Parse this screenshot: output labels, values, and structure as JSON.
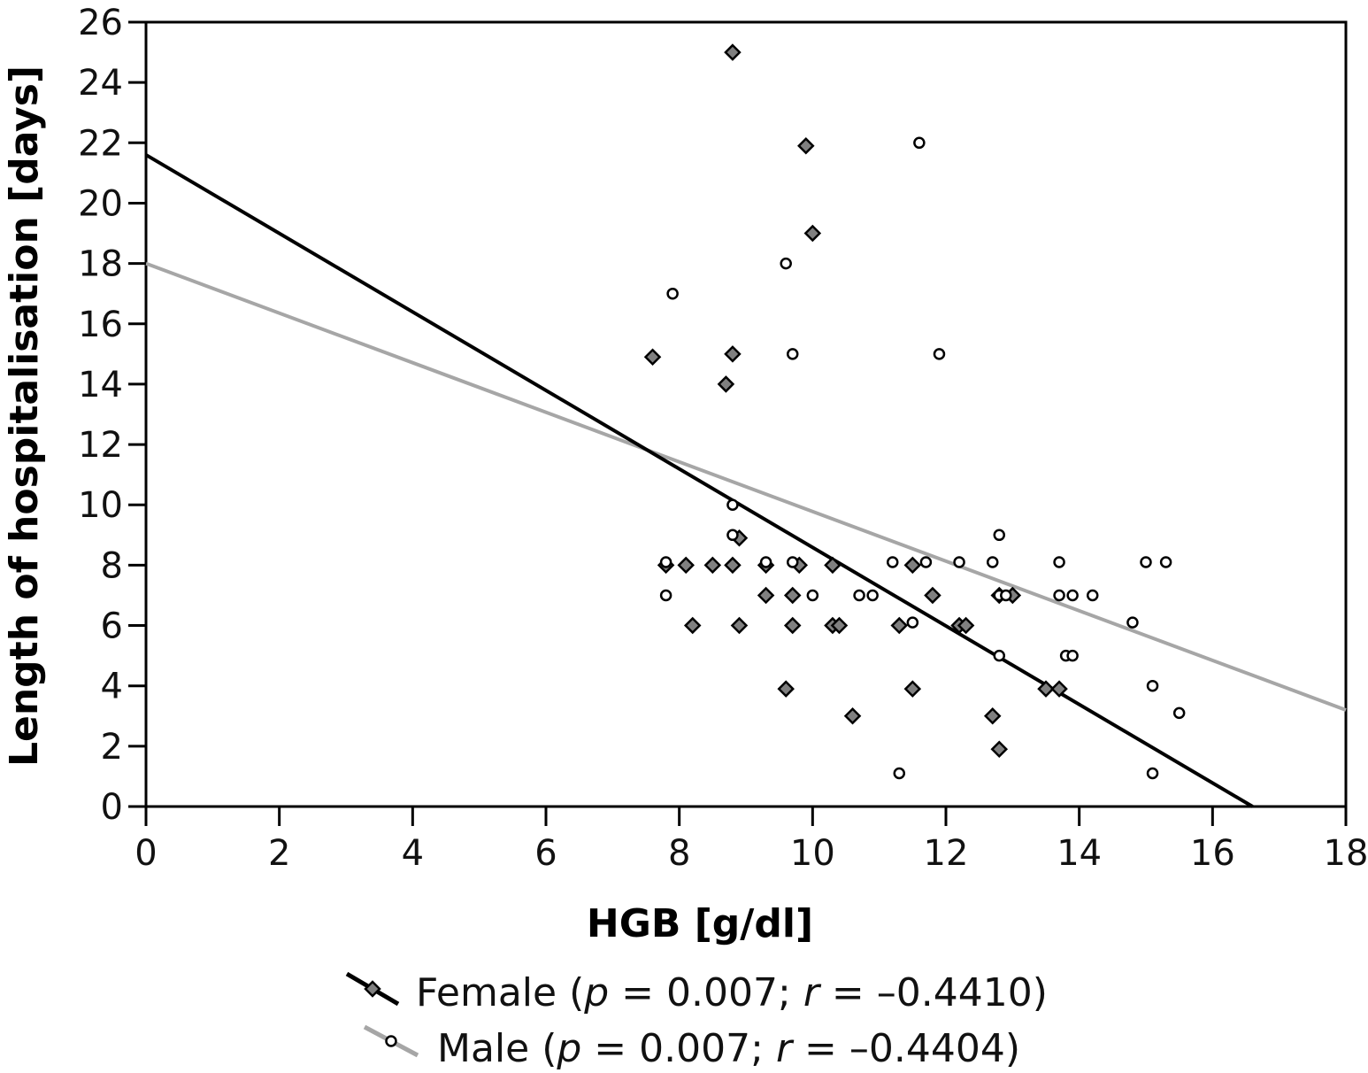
{
  "chart_data": {
    "type": "scatter",
    "xlabel": "HGB [g/dl]",
    "ylabel": "Length of hospitalisation [days]",
    "xlim": [
      0,
      18
    ],
    "ylim": [
      0,
      26
    ],
    "x_ticks": [
      0,
      2,
      4,
      6,
      8,
      10,
      12,
      14,
      16,
      18
    ],
    "y_ticks": [
      0,
      2,
      4,
      6,
      8,
      10,
      12,
      14,
      16,
      18,
      20,
      22,
      24,
      26
    ],
    "x_tick_labels": [
      "0",
      "2",
      "4",
      "6",
      "8",
      "10",
      "12",
      "14",
      "16",
      "18"
    ],
    "y_tick_labels": [
      "0",
      "2",
      "4",
      "6",
      "8",
      "10",
      "12",
      "14",
      "16",
      "18",
      "20",
      "22",
      "24",
      "26"
    ],
    "grid": false,
    "legend_position": "bottom-center",
    "series": [
      {
        "name": "Female",
        "marker": "diamond",
        "marker_color": "#808080",
        "line_color": "#000000",
        "legend_label": {
          "prefix": "Female (",
          "p_symbol": "p",
          "p_text": " = 0.007; ",
          "r_symbol": "r",
          "r_text": " = –0.4410)"
        },
        "trend_line": {
          "x": [
            0,
            16.6
          ],
          "y": [
            21.6,
            0
          ]
        },
        "points": [
          [
            8.8,
            25
          ],
          [
            9.9,
            21.9
          ],
          [
            10.0,
            19
          ],
          [
            7.6,
            14.9
          ],
          [
            8.8,
            15
          ],
          [
            8.7,
            14
          ],
          [
            8.9,
            8.9
          ],
          [
            7.8,
            8
          ],
          [
            8.1,
            8
          ],
          [
            8.5,
            8
          ],
          [
            8.8,
            8
          ],
          [
            9.3,
            8
          ],
          [
            9.8,
            8
          ],
          [
            10.3,
            8
          ],
          [
            11.5,
            8
          ],
          [
            9.3,
            7
          ],
          [
            9.7,
            7
          ],
          [
            11.8,
            7
          ],
          [
            12.8,
            7
          ],
          [
            13.0,
            7
          ],
          [
            8.2,
            6
          ],
          [
            8.9,
            6
          ],
          [
            9.7,
            6
          ],
          [
            10.3,
            6
          ],
          [
            10.4,
            6
          ],
          [
            11.3,
            6
          ],
          [
            12.2,
            6
          ],
          [
            12.3,
            6
          ],
          [
            9.6,
            3.9
          ],
          [
            11.5,
            3.9
          ],
          [
            13.5,
            3.9
          ],
          [
            13.7,
            3.9
          ],
          [
            10.6,
            3
          ],
          [
            12.7,
            3
          ],
          [
            12.8,
            1.9
          ]
        ]
      },
      {
        "name": "Male",
        "marker": "circle",
        "marker_color": "#ffffff",
        "line_color": "#a6a6a6",
        "legend_label": {
          "prefix": "Male (",
          "p_symbol": "p",
          "p_text": " = 0.007; ",
          "r_symbol": "r",
          "r_text": " = –0.4404)"
        },
        "trend_line": {
          "x": [
            0,
            18
          ],
          "y": [
            18,
            3.2
          ]
        },
        "points": [
          [
            11.6,
            22
          ],
          [
            9.6,
            18
          ],
          [
            7.9,
            17
          ],
          [
            9.7,
            15
          ],
          [
            11.9,
            15
          ],
          [
            8.8,
            10
          ],
          [
            8.8,
            9
          ],
          [
            12.8,
            9
          ],
          [
            7.8,
            8.1
          ],
          [
            9.3,
            8.1
          ],
          [
            9.7,
            8.1
          ],
          [
            11.2,
            8.1
          ],
          [
            11.7,
            8.1
          ],
          [
            12.2,
            8.1
          ],
          [
            12.7,
            8.1
          ],
          [
            13.7,
            8.1
          ],
          [
            15.0,
            8.1
          ],
          [
            15.3,
            8.1
          ],
          [
            7.8,
            7
          ],
          [
            10.0,
            7
          ],
          [
            10.7,
            7
          ],
          [
            10.9,
            7
          ],
          [
            12.8,
            7
          ],
          [
            12.9,
            7
          ],
          [
            13.7,
            7
          ],
          [
            13.9,
            7
          ],
          [
            14.2,
            7
          ],
          [
            11.5,
            6.1
          ],
          [
            14.8,
            6.1
          ],
          [
            12.8,
            5
          ],
          [
            13.8,
            5
          ],
          [
            13.9,
            5
          ],
          [
            15.1,
            4
          ],
          [
            15.5,
            3.1
          ],
          [
            11.3,
            1.1
          ],
          [
            15.1,
            1.1
          ]
        ]
      }
    ]
  }
}
